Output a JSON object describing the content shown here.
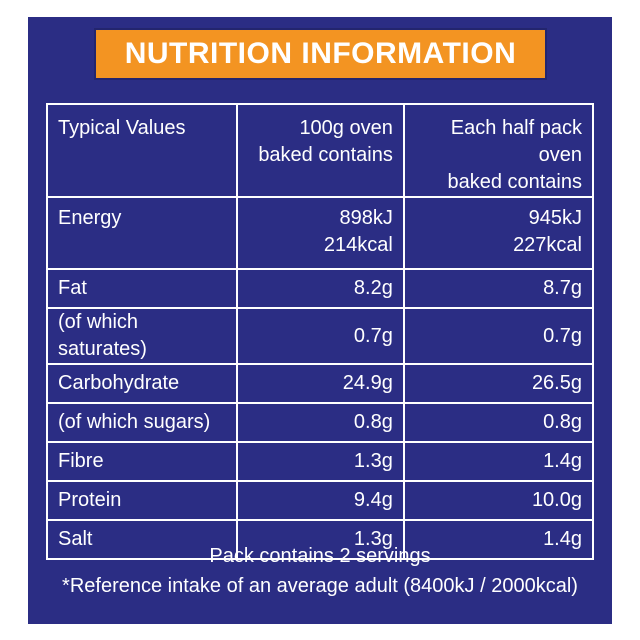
{
  "title": "NUTRITION INFORMATION",
  "table": {
    "headers": [
      "Typical Values",
      "100g oven baked contains",
      "Each half pack oven baked contains"
    ],
    "header_lines": [
      [
        "Typical Values"
      ],
      [
        "100g oven",
        "baked contains"
      ],
      [
        "Each half pack oven",
        "baked contains"
      ]
    ],
    "energy": {
      "label": "Energy",
      "per100g": [
        "898kJ",
        "214kcal"
      ],
      "perhalf": [
        "945kJ",
        "227kcal"
      ]
    },
    "rows": [
      {
        "label": "Fat",
        "per100g": "8.2g",
        "perhalf": "8.7g"
      },
      {
        "label": "(of which saturates)",
        "per100g": "0.7g",
        "perhalf": "0.7g"
      },
      {
        "label": "Carbohydrate",
        "per100g": "24.9g",
        "perhalf": "26.5g"
      },
      {
        "label": "(of which sugars)",
        "per100g": "0.8g",
        "perhalf": "0.8g"
      },
      {
        "label": "Fibre",
        "per100g": "1.3g",
        "perhalf": "1.4g"
      },
      {
        "label": "Protein",
        "per100g": "9.4g",
        "perhalf": "10.0g"
      },
      {
        "label": "Salt",
        "per100g": "1.3g",
        "perhalf": "1.4g"
      }
    ]
  },
  "footer": {
    "servings": "Pack contains 2 servings",
    "reference": "*Reference intake of an average adult (8400kJ / 2000kcal)"
  },
  "colors": {
    "background": "#2b2d84",
    "banner": "#f39422",
    "text": "#ffffff"
  }
}
